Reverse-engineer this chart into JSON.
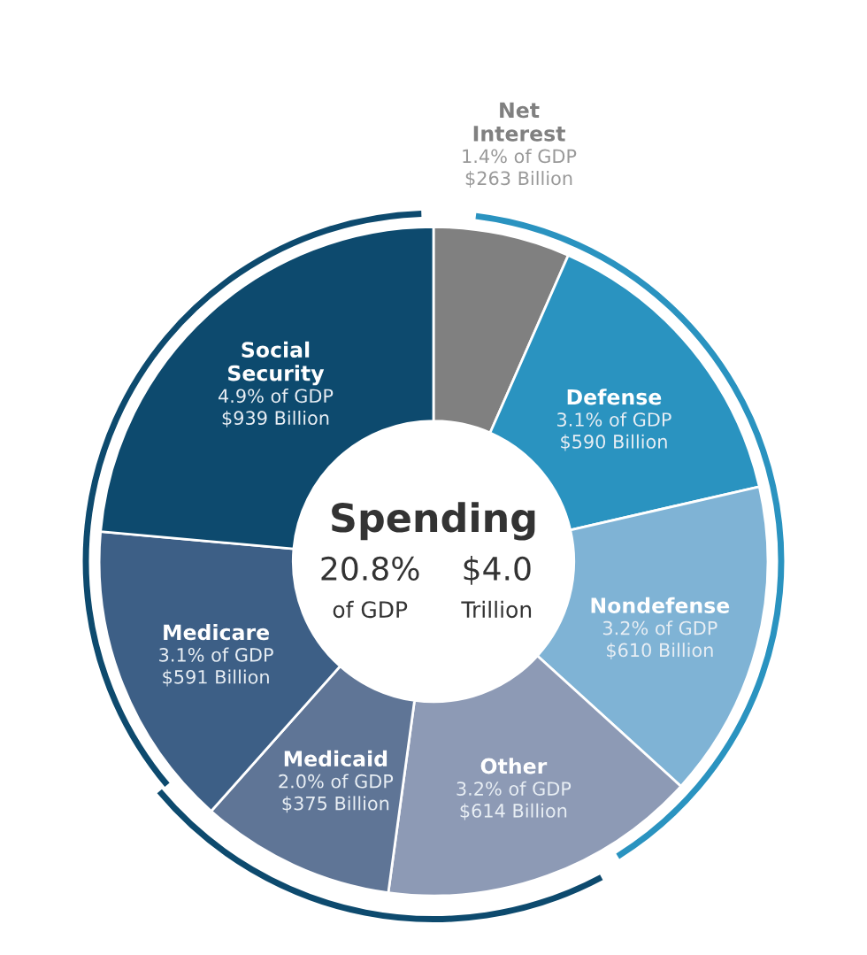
{
  "chart_data": {
    "type": "donut",
    "categories": [
      "Net\nInterest",
      "Defense",
      "Nondefense",
      "Other",
      "Medicaid",
      "Medicare",
      "Social\nSecurity"
    ],
    "values": [
      263,
      590,
      610,
      614,
      375,
      591,
      939
    ],
    "value_labels": [
      "1.4% of GDP\n$263 Billion",
      "3.1% of GDP\n$590 Billion",
      "3.2% of GDP\n$610 Billion",
      "3.2% of GDP\n$614 Billion",
      "2.0% of GDP\n$375 Billion",
      "3.1% of GDP\n$591 Billion",
      "4.9% of GDP\n$939 Billion"
    ],
    "colors": [
      "#808080",
      "#2a93c0",
      "#7fb3d5",
      "#8d9ab5",
      "#5f7596",
      "#3d5f86",
      "#0d4a6e"
    ],
    "annotations": [
      "Spending",
      "20.8%\nof GDP",
      "$4.0\nTrillion"
    ],
    "legend": false
  }
}
